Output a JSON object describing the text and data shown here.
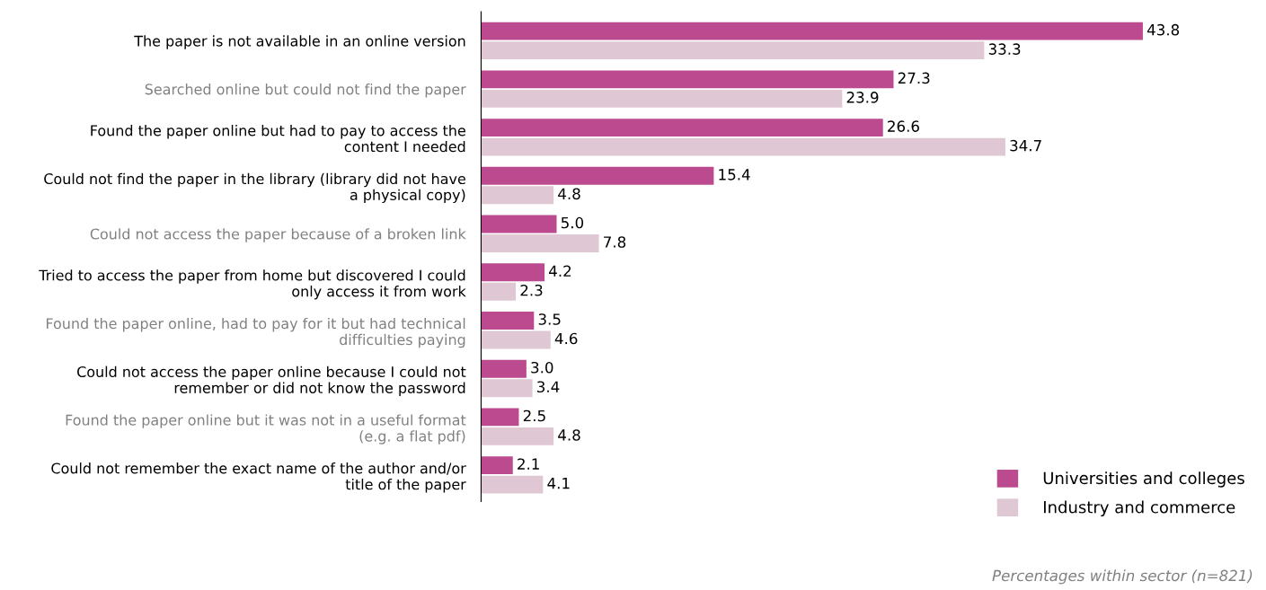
{
  "chart_data": {
    "type": "bar",
    "orientation": "horizontal",
    "legend": "bottom right",
    "grid": false,
    "categories": [
      "The paper is not available in an online version",
      "Searched online but could not find the paper",
      "Found the paper online but had to pay to access the\ncontent I needed",
      "Could not find the paper in the library (library did not have\na physical copy)",
      "Could not access the paper because of a broken link",
      "Tried to access the paper from home but discovered I could\nonly access it from work",
      "Found the paper online, had to pay for it but had technical\ndifficulties paying",
      "Could not access the paper online because I could not\nremember or did not know the password",
      "Found the paper online but it was not in a useful format\n(e.g. a flat pdf)",
      "Could not remember the exact name of the author and/or\ntitle of the paper"
    ],
    "series": [
      {
        "name": "Universities and colleges",
        "color": "#bb4a8f",
        "values": [
          43.8,
          27.3,
          26.6,
          15.4,
          5.0,
          4.2,
          3.5,
          3.0,
          2.5,
          2.1
        ],
        "value_labels": [
          "43.8",
          "27.3",
          "26.6",
          "15.4",
          "5.0",
          "4.2",
          "3.5",
          "3.0",
          "2.5",
          "2.1"
        ]
      },
      {
        "name": "Industry and commerce",
        "color": "#dfc7d3",
        "values": [
          33.3,
          23.9,
          34.7,
          4.8,
          7.8,
          2.3,
          4.6,
          3.4,
          4.8,
          4.1
        ],
        "value_labels": [
          "33.3",
          "23.9",
          "34.7",
          "4.8",
          "7.8",
          "2.3",
          "4.6",
          "3.4",
          "4.8",
          "4.1"
        ]
      }
    ],
    "annotations": [
      "Percentages within sector (n=821)"
    ]
  }
}
